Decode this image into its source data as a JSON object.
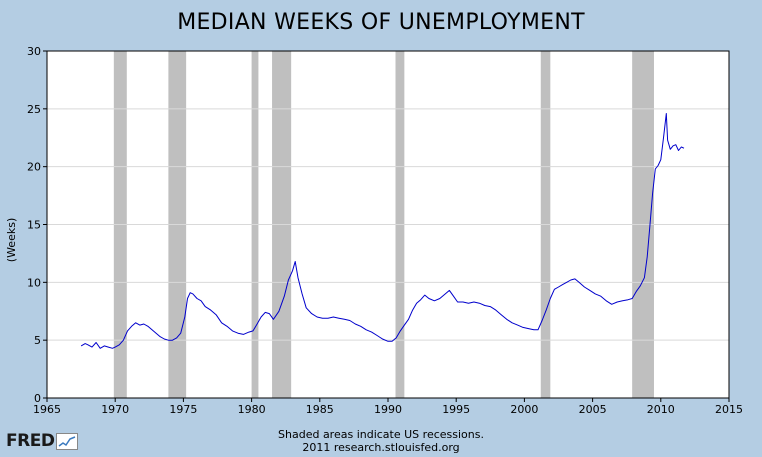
{
  "chart_data": {
    "type": "line",
    "title": "MEDIAN WEEKS OF UNEMPLOYMENT",
    "ylabel": "(Weeks)",
    "xlabel": "",
    "xlim": [
      1965,
      2015
    ],
    "ylim": [
      0,
      30
    ],
    "x_ticks": [
      1965,
      1970,
      1975,
      1980,
      1985,
      1990,
      1995,
      2000,
      2005,
      2010,
      2015
    ],
    "y_ticks": [
      0,
      5,
      10,
      15,
      20,
      25,
      30
    ],
    "grid": true,
    "line_color": "#0000cc",
    "recession_color": "#bfbfbf",
    "recessions": [
      [
        1969.9,
        1970.85
      ],
      [
        1973.9,
        1975.2
      ],
      [
        1980.0,
        1980.5
      ],
      [
        1981.5,
        1982.9
      ],
      [
        1990.55,
        1991.2
      ],
      [
        2001.2,
        2001.9
      ],
      [
        2007.9,
        2009.5
      ]
    ],
    "series": [
      {
        "x": [
          1967.5,
          1967.8,
          1968.0,
          1968.3,
          1968.6,
          1968.9,
          1969.2,
          1969.5,
          1969.8,
          1970.0,
          1970.3,
          1970.6,
          1970.9,
          1971.2,
          1971.5,
          1971.8,
          1972.1,
          1972.4,
          1972.7,
          1973.0,
          1973.3,
          1973.6,
          1973.9,
          1974.2,
          1974.5,
          1974.8,
          1975.1,
          1975.3,
          1975.5,
          1975.7,
          1976.0,
          1976.3,
          1976.6,
          1977.0,
          1977.4,
          1977.8,
          1978.2,
          1978.6,
          1979.0,
          1979.4,
          1979.8,
          1980.1,
          1980.4,
          1980.7,
          1981.0,
          1981.3,
          1981.6,
          1982.0,
          1982.4,
          1982.7,
          1983.0,
          1983.2,
          1983.4,
          1983.7,
          1984.0,
          1984.4,
          1984.8,
          1985.2,
          1985.6,
          1986.0,
          1986.4,
          1986.8,
          1987.2,
          1987.6,
          1988.0,
          1988.4,
          1988.8,
          1989.2,
          1989.6,
          1990.0,
          1990.3,
          1990.6,
          1990.9,
          1991.2,
          1991.5,
          1991.8,
          1992.1,
          1992.4,
          1992.7,
          1993.0,
          1993.4,
          1993.8,
          1994.2,
          1994.5,
          1994.8,
          1995.1,
          1995.5,
          1995.9,
          1996.3,
          1996.7,
          1997.1,
          1997.5,
          1997.9,
          1998.3,
          1998.7,
          1999.1,
          1999.5,
          1999.9,
          2000.3,
          2000.7,
          2001.0,
          2001.3,
          2001.6,
          2001.9,
          2002.2,
          2002.5,
          2002.8,
          2003.1,
          2003.4,
          2003.7,
          2004.0,
          2004.4,
          2004.8,
          2005.2,
          2005.6,
          2006.0,
          2006.4,
          2006.8,
          2007.2,
          2007.6,
          2007.9,
          2008.2,
          2008.5,
          2008.8,
          2009.0,
          2009.2,
          2009.4,
          2009.6,
          2009.8,
          2010.0,
          2010.2,
          2010.4,
          2010.5,
          2010.7,
          2010.9,
          2011.1,
          2011.3,
          2011.5,
          2011.7
        ],
        "y": [
          4.5,
          4.7,
          4.6,
          4.4,
          4.8,
          4.3,
          4.5,
          4.4,
          4.3,
          4.4,
          4.6,
          5.0,
          5.8,
          6.2,
          6.5,
          6.3,
          6.4,
          6.2,
          5.9,
          5.6,
          5.3,
          5.1,
          5.0,
          5.0,
          5.2,
          5.6,
          7.0,
          8.6,
          9.1,
          9.0,
          8.6,
          8.4,
          7.9,
          7.6,
          7.2,
          6.5,
          6.2,
          5.8,
          5.6,
          5.5,
          5.7,
          5.8,
          6.4,
          7.0,
          7.4,
          7.3,
          6.8,
          7.5,
          8.8,
          10.2,
          11.0,
          11.8,
          10.4,
          9.0,
          7.8,
          7.3,
          7.0,
          6.9,
          6.9,
          7.0,
          6.9,
          6.8,
          6.7,
          6.4,
          6.2,
          5.9,
          5.7,
          5.4,
          5.1,
          4.9,
          4.9,
          5.2,
          5.8,
          6.3,
          6.8,
          7.6,
          8.2,
          8.5,
          8.9,
          8.6,
          8.4,
          8.6,
          9.0,
          9.3,
          8.8,
          8.3,
          8.3,
          8.2,
          8.3,
          8.2,
          8.0,
          7.9,
          7.6,
          7.2,
          6.8,
          6.5,
          6.3,
          6.1,
          6.0,
          5.9,
          5.9,
          6.7,
          7.6,
          8.6,
          9.4,
          9.6,
          9.8,
          10.0,
          10.2,
          10.3,
          10.0,
          9.6,
          9.3,
          9.0,
          8.8,
          8.4,
          8.1,
          8.3,
          8.4,
          8.5,
          8.6,
          9.2,
          9.7,
          10.4,
          12.2,
          14.9,
          17.7,
          19.8,
          20.1,
          20.6,
          22.5,
          24.6,
          22.3,
          21.5,
          21.8,
          21.9,
          21.4,
          21.7,
          21.6
        ]
      }
    ],
    "footnote_line1": "Shaded areas indicate US recessions.",
    "footnote_line2": "2011 research.stlouisfed.org",
    "logo_text": "FRED"
  }
}
